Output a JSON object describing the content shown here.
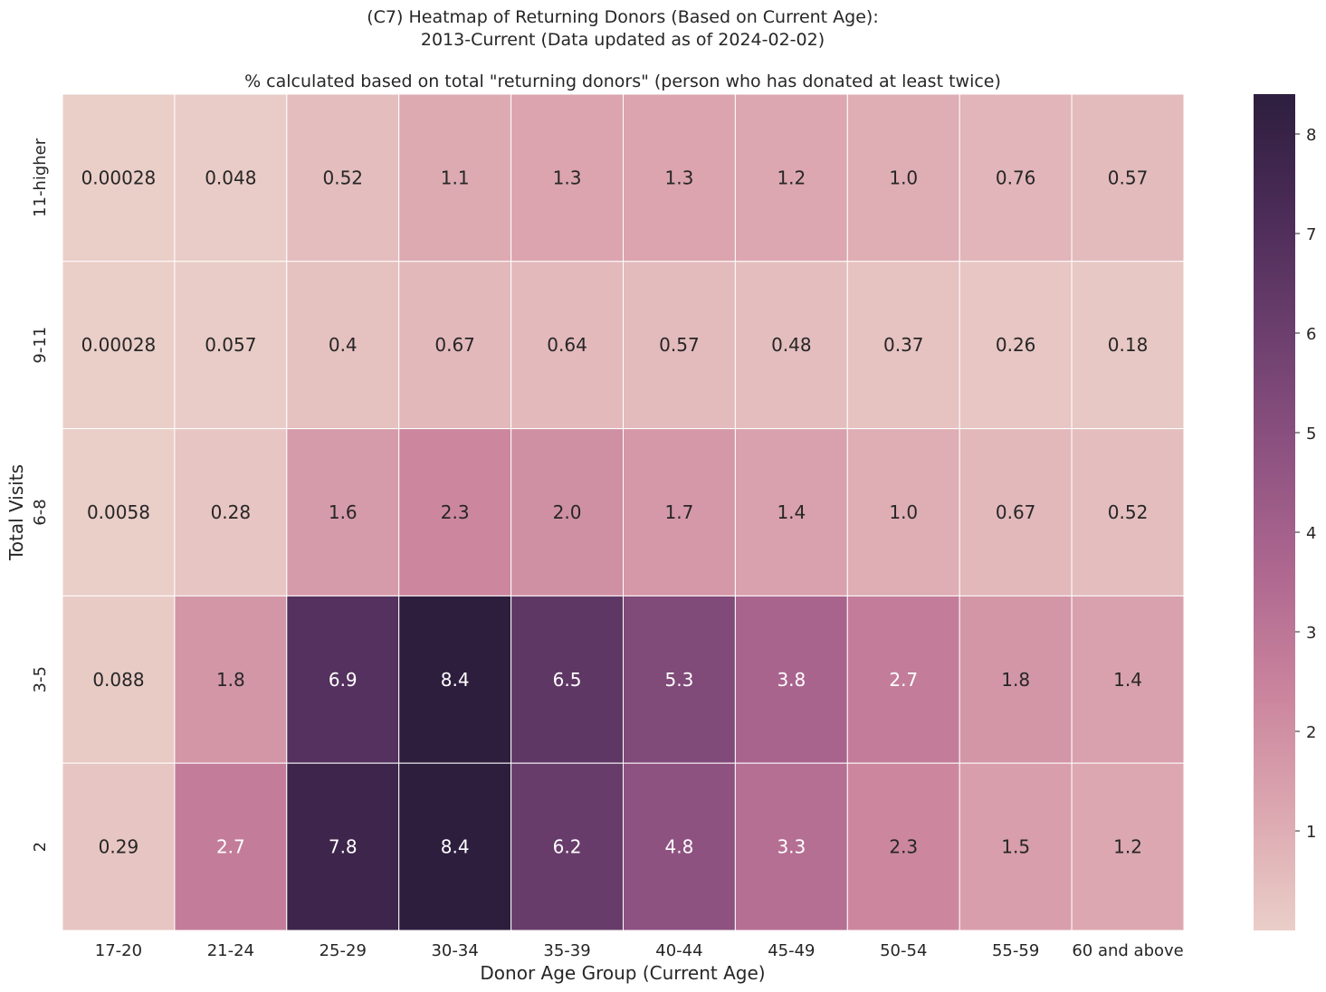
{
  "chart_data": {
    "type": "heatmap",
    "title": "(C7) Heatmap of Returning Donors (Based on Current Age):",
    "title_line2": "2013-Current (Data updated as of 2024-02-02)",
    "subtitle": "% calculated based on total \"returning donors\" (person who has donated at least twice)",
    "xlabel": "Donor Age Group (Current Age)",
    "ylabel": "Total Visits",
    "columns": [
      "17-20",
      "21-24",
      "25-29",
      "30-34",
      "35-39",
      "40-44",
      "45-49",
      "50-54",
      "55-59",
      "60 and above"
    ],
    "rows": [
      "11-higher",
      "9-11",
      "6-8",
      "3-5",
      "2"
    ],
    "values": [
      [
        0.00028,
        0.048,
        0.52,
        1.1,
        1.3,
        1.3,
        1.2,
        1.0,
        0.76,
        0.57
      ],
      [
        0.00028,
        0.057,
        0.4,
        0.67,
        0.64,
        0.57,
        0.48,
        0.37,
        0.26,
        0.18
      ],
      [
        0.0058,
        0.28,
        1.6,
        2.3,
        2.0,
        1.7,
        1.4,
        1.0,
        0.67,
        0.52
      ],
      [
        0.088,
        1.8,
        6.9,
        8.4,
        6.5,
        5.3,
        3.8,
        2.7,
        1.8,
        1.4
      ],
      [
        0.29,
        2.7,
        7.8,
        8.4,
        6.2,
        4.8,
        3.3,
        2.3,
        1.5,
        1.2
      ]
    ],
    "labels": [
      [
        "0.00028",
        "0.048",
        "0.52",
        "1.1",
        "1.3",
        "1.3",
        "1.2",
        "1.0",
        "0.76",
        "0.57"
      ],
      [
        "0.00028",
        "0.057",
        "0.4",
        "0.67",
        "0.64",
        "0.57",
        "0.48",
        "0.37",
        "0.26",
        "0.18"
      ],
      [
        "0.0058",
        "0.28",
        "1.6",
        "2.3",
        "2.0",
        "1.7",
        "1.4",
        "1.0",
        "0.67",
        "0.52"
      ],
      [
        "0.088",
        "1.8",
        "6.9",
        "8.4",
        "6.5",
        "5.3",
        "3.8",
        "2.7",
        "1.8",
        "1.4"
      ],
      [
        "0.29",
        "2.7",
        "7.8",
        "8.4",
        "6.2",
        "4.8",
        "3.3",
        "2.3",
        "1.5",
        "1.2"
      ]
    ],
    "colorbar": {
      "min": 0.00028,
      "max": 8.4,
      "ticks": [
        1,
        2,
        3,
        4,
        5,
        6,
        7,
        8
      ],
      "colors": [
        "#eacec8",
        "#dca7b0",
        "#ca849d",
        "#ae6890",
        "#8e5281",
        "#6c3f6e",
        "#4c2c58",
        "#2d1e3e"
      ]
    },
    "grid": false,
    "legend": "colorbar-right"
  }
}
